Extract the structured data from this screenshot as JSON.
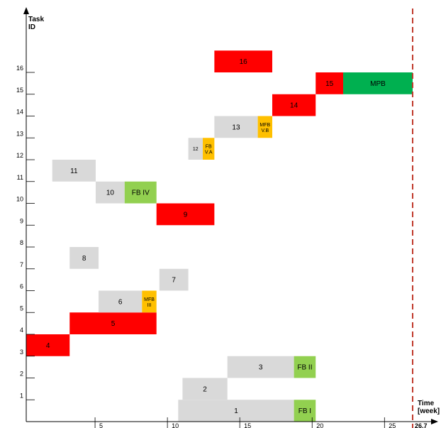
{
  "chart_data": {
    "type": "gantt",
    "title": "",
    "ylabel": [
      "Task",
      "ID"
    ],
    "xlabel": [
      "Time",
      "[week]"
    ],
    "xlim": [
      0,
      26.7
    ],
    "ylim": [
      0,
      16
    ],
    "x_ticks": [
      "5",
      "10",
      "15",
      "20",
      "25"
    ],
    "x_tick_values": [
      5,
      10,
      15,
      20,
      25
    ],
    "y_ticks": [
      "1",
      "2",
      "3",
      "4",
      "5",
      "6",
      "7",
      "8",
      "9",
      "10",
      "11",
      "12",
      "13",
      "14",
      "15",
      "16"
    ],
    "deadline": {
      "value": 26.7,
      "label": "26,7",
      "color": "#c0392b"
    },
    "colors": {
      "grey": "#d9d9d9",
      "red": "#ff0000",
      "green": "#92d050",
      "orange": "#ffc000",
      "dark_green": "#00b050"
    },
    "bars": [
      {
        "label": "1",
        "row": 1,
        "start": 10.5,
        "end": 18.5,
        "color": "grey"
      },
      {
        "label": "FB I",
        "row": 1,
        "start": 18.5,
        "end": 20,
        "color": "green"
      },
      {
        "label": "2",
        "row": 2,
        "start": 10.8,
        "end": 13.9,
        "color": "grey"
      },
      {
        "label": "3",
        "row": 3,
        "start": 13.9,
        "end": 18.5,
        "color": "grey"
      },
      {
        "label": "FB II",
        "row": 3,
        "start": 18.5,
        "end": 20,
        "color": "green"
      },
      {
        "label": "4",
        "row": 4,
        "start": 0,
        "end": 3,
        "color": "red"
      },
      {
        "label": "5",
        "row": 5,
        "start": 3,
        "end": 9,
        "color": "red"
      },
      {
        "label": "6",
        "row": 6,
        "start": 5,
        "end": 8,
        "color": "grey"
      },
      {
        "label": "MFB III",
        "row": 6,
        "start": 8,
        "end": 9,
        "color": "orange"
      },
      {
        "label": "7",
        "row": 7,
        "start": 9.2,
        "end": 11.2,
        "color": "grey"
      },
      {
        "label": "8",
        "row": 8,
        "start": 3,
        "end": 5,
        "color": "grey"
      },
      {
        "label": "9",
        "row": 10,
        "start": 9,
        "end": 13,
        "color": "red"
      },
      {
        "label": "10",
        "row": 11,
        "start": 4.8,
        "end": 6.8,
        "color": "grey"
      },
      {
        "label": "FB IV",
        "row": 11,
        "start": 6.8,
        "end": 9,
        "color": "green"
      },
      {
        "label": "11",
        "row": 12,
        "start": 1.8,
        "end": 4.8,
        "color": "grey"
      },
      {
        "label": "12",
        "row": 13,
        "start": 11.2,
        "end": 12.2,
        "color": "grey"
      },
      {
        "label": "FB V.A",
        "row": 13,
        "start": 12.2,
        "end": 13,
        "color": "orange"
      },
      {
        "label": "13",
        "row": 14,
        "start": 13,
        "end": 16,
        "color": "grey"
      },
      {
        "label": "MFB V.B",
        "row": 14,
        "start": 16,
        "end": 17,
        "color": "orange"
      },
      {
        "label": "14",
        "row": 15,
        "start": 17,
        "end": 20,
        "color": "red"
      },
      {
        "label": "15",
        "row": 16,
        "start": 20,
        "end": 21.9,
        "color": "red"
      },
      {
        "label": "MPB",
        "row": 16,
        "start": 21.9,
        "end": 26.7,
        "color": "dark_green"
      },
      {
        "label": "16",
        "row": 17,
        "start": 13,
        "end": 17,
        "color": "red"
      }
    ]
  }
}
